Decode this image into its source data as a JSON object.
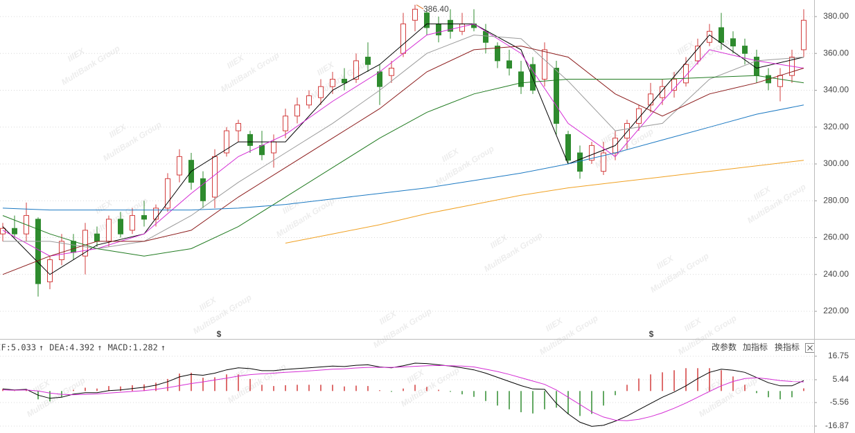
{
  "chart_data": [
    {
      "type": "candlestick",
      "open": [
        262,
        265,
        262,
        270,
        236,
        248,
        258,
        250,
        262,
        258,
        270,
        264,
        272,
        270,
        276,
        294,
        302,
        292,
        282,
        306,
        318,
        316,
        310,
        306,
        318,
        326,
        332,
        336,
        342,
        346,
        346,
        358,
        350,
        348,
        360,
        378,
        382,
        376,
        378,
        372,
        376,
        372,
        364,
        356,
        350,
        354,
        346,
        352,
        316,
        306,
        302,
        296,
        306,
        314,
        322,
        332,
        336,
        340,
        344,
        356,
        366,
        374,
        368,
        364,
        358,
        348,
        342,
        348,
        362
      ],
      "high": [
        268,
        272,
        279,
        271,
        250,
        262,
        262,
        268,
        266,
        272,
        274,
        276,
        280,
        278,
        295,
        308,
        306,
        296,
        308,
        320,
        324,
        318,
        318,
        316,
        330,
        336,
        340,
        346,
        350,
        352,
        360,
        366,
        354,
        356,
        382,
        386.4,
        384,
        380,
        384,
        382,
        384,
        376,
        366,
        362,
        356,
        358,
        366,
        356,
        318,
        310,
        312,
        312,
        318,
        324,
        332,
        344,
        346,
        350,
        358,
        368,
        376,
        382,
        372,
        368,
        362,
        352,
        352,
        362,
        384
      ],
      "low": [
        258,
        260,
        258,
        228,
        232,
        245,
        248,
        240,
        255,
        255,
        260,
        262,
        266,
        266,
        274,
        290,
        286,
        276,
        276,
        304,
        312,
        306,
        302,
        298,
        314,
        322,
        330,
        332,
        338,
        340,
        344,
        350,
        332,
        344,
        358,
        372,
        370,
        366,
        368,
        370,
        372,
        360,
        352,
        348,
        338,
        338,
        342,
        316,
        300,
        292,
        300,
        294,
        302,
        308,
        318,
        328,
        332,
        336,
        342,
        354,
        364,
        362,
        360,
        354,
        344,
        340,
        334,
        344,
        358
      ],
      "close": [
        265,
        262,
        272,
        235,
        248,
        258,
        252,
        264,
        258,
        270,
        262,
        272,
        270,
        276,
        292,
        304,
        290,
        280,
        304,
        318,
        322,
        310,
        305,
        312,
        326,
        332,
        337,
        342,
        346,
        344,
        356,
        354,
        342,
        352,
        376,
        384,
        374,
        370,
        372,
        376,
        374,
        366,
        356,
        352,
        342,
        340,
        362,
        322,
        302,
        296,
        310,
        306,
        314,
        322,
        330,
        338,
        342,
        346,
        354,
        364,
        372,
        366,
        364,
        360,
        348,
        344,
        348,
        358,
        378
      ],
      "up_color": "#d23c3c",
      "down_color": "#2e8b2e",
      "max_label": "386.40",
      "series": [
        {
          "color": "#000000",
          "values": [
            266,
            240,
            256,
            262,
            296,
            312,
            312,
            340,
            354,
            376,
            376,
            362,
            300,
            310,
            340,
            370,
            352,
            358
          ]
        },
        {
          "color": "#d42bd4",
          "values": [
            264,
            250,
            254,
            262,
            284,
            304,
            316,
            334,
            350,
            370,
            376,
            360,
            322,
            304,
            334,
            362,
            356,
            352
          ]
        },
        {
          "color": "#9a9a9a",
          "values": [
            258,
            258,
            254,
            258,
            272,
            290,
            306,
            322,
            340,
            360,
            370,
            368,
            345,
            318,
            322,
            346,
            356,
            358
          ]
        },
        {
          "color": "#8b1a1a",
          "values": [
            240,
            250,
            258,
            258,
            264,
            282,
            298,
            314,
            330,
            350,
            362,
            364,
            358,
            338,
            326,
            338,
            344,
            352
          ]
        },
        {
          "color": "#1f7a1f",
          "values": [
            272,
            262,
            254,
            250,
            254,
            266,
            282,
            298,
            314,
            328,
            338,
            344,
            346,
            346,
            346,
            347,
            348,
            344
          ]
        },
        {
          "color": "#1a78c2",
          "values": [
            276,
            275,
            275,
            275,
            275,
            276,
            278,
            281,
            284,
            287,
            291,
            295,
            300,
            306,
            313,
            320,
            327,
            332
          ]
        },
        {
          "color": "#f0a020",
          "values": [
            null,
            null,
            null,
            null,
            null,
            null,
            257,
            262,
            267,
            273,
            278,
            283,
            287,
            290,
            293,
            296,
            299,
            302
          ]
        }
      ],
      "dividend_marker": "$",
      "ylim": [
        205,
        389
      ],
      "yticks": [
        {
          "value": 220,
          "label": "220.00"
        },
        {
          "value": 240,
          "label": "240.00"
        },
        {
          "value": 260,
          "label": "260.00"
        },
        {
          "value": 280,
          "label": "280.00"
        },
        {
          "value": 300,
          "label": "300.00"
        },
        {
          "value": 320,
          "label": "320.00"
        },
        {
          "value": 340,
          "label": "340.00"
        },
        {
          "value": 360,
          "label": "360.00"
        },
        {
          "value": 380,
          "label": "380.00"
        }
      ],
      "grid": true
    },
    {
      "type": "macd",
      "legend_separator": ":",
      "legend_arrow": "↑",
      "series": [
        {
          "name": "DIF",
          "color": "#000000",
          "values": [
            1,
            0.5,
            0.8,
            -2,
            -3.5,
            -3,
            -1.5,
            -0.8,
            -0.8,
            0.2,
            0.5,
            1.2,
            1.8,
            2.8,
            4.5,
            6.8,
            8,
            7.6,
            8.6,
            10.2,
            11.2,
            10.8,
            9.8,
            9.8,
            10.4,
            10.8,
            11.2,
            11.6,
            12,
            11.8,
            12.4,
            12.6,
            11.6,
            11.2,
            12.2,
            13.4,
            13.2,
            12.6,
            12,
            11.2,
            10.2,
            8.6,
            6.6,
            4.6,
            2.6,
            1,
            0.8,
            -6,
            -11,
            -15,
            -17,
            -16.5,
            -14.5,
            -12,
            -9,
            -6,
            -3,
            -0.5,
            2.5,
            6,
            9,
            10.5,
            10,
            9,
            6.5,
            4,
            2.5,
            2.5,
            5.033
          ]
        },
        {
          "name": "DEA",
          "color": "#d42bd4",
          "values": [
            0.5,
            0.4,
            0.5,
            0,
            -1,
            -1.6,
            -1.8,
            -1.6,
            -1.4,
            -1,
            -0.6,
            -0.2,
            0.2,
            0.8,
            1.6,
            2.6,
            3.6,
            4.4,
            5.3,
            6.2,
            7.2,
            7.9,
            8.3,
            8.6,
            9,
            9.3,
            9.7,
            10.1,
            10.5,
            10.7,
            11.1,
            11.4,
            11.4,
            11.4,
            11.6,
            11.9,
            12.2,
            12.3,
            12.2,
            12,
            11.6,
            10.5,
            9.4,
            8,
            6.4,
            4.8,
            3.2,
            0.5,
            -3,
            -6.5,
            -10,
            -12.5,
            -14,
            -14.3,
            -13.6,
            -12.3,
            -10.5,
            -8.3,
            -5.8,
            -3,
            -0.2,
            2.5,
            4.6,
            6,
            6.4,
            5.8,
            5,
            4.6,
            4.392
          ]
        },
        {
          "name": "MACD",
          "color": "#555555",
          "up_color": "#d23c3c",
          "down_color": "#2e8b2e",
          "values": [
            1,
            0.2,
            0.6,
            -4,
            -5,
            -2.8,
            0.6,
            1.6,
            1.2,
            2.4,
            2.2,
            2.8,
            3.2,
            4,
            5.8,
            8.4,
            8.8,
            6.4,
            6.6,
            8,
            8,
            5.8,
            3,
            2.4,
            2.8,
            3,
            3,
            3,
            3,
            2.2,
            2.6,
            2.4,
            0.4,
            -0.4,
            1.2,
            3,
            2,
            0.6,
            -0.4,
            -1.6,
            -2.8,
            -4.8,
            -7,
            -8.8,
            -10.2,
            -10.8,
            -8.8,
            -8,
            -11,
            -12,
            -11,
            -7,
            -2,
            3,
            6,
            8,
            9,
            10,
            11,
            11,
            11,
            10,
            7,
            3,
            -1,
            -3,
            -4,
            -3,
            1.282
          ]
        }
      ],
      "buttons": [
        "改参数",
        "加指标",
        "换指标"
      ],
      "ylim": [
        -20.2,
        23.4
      ],
      "yticks": [
        16.75,
        5.44,
        -5.56,
        -16.87
      ],
      "grid": true
    }
  ],
  "watermark": {
    "logo": "IIIEX",
    "text": "MultiBank Group"
  }
}
